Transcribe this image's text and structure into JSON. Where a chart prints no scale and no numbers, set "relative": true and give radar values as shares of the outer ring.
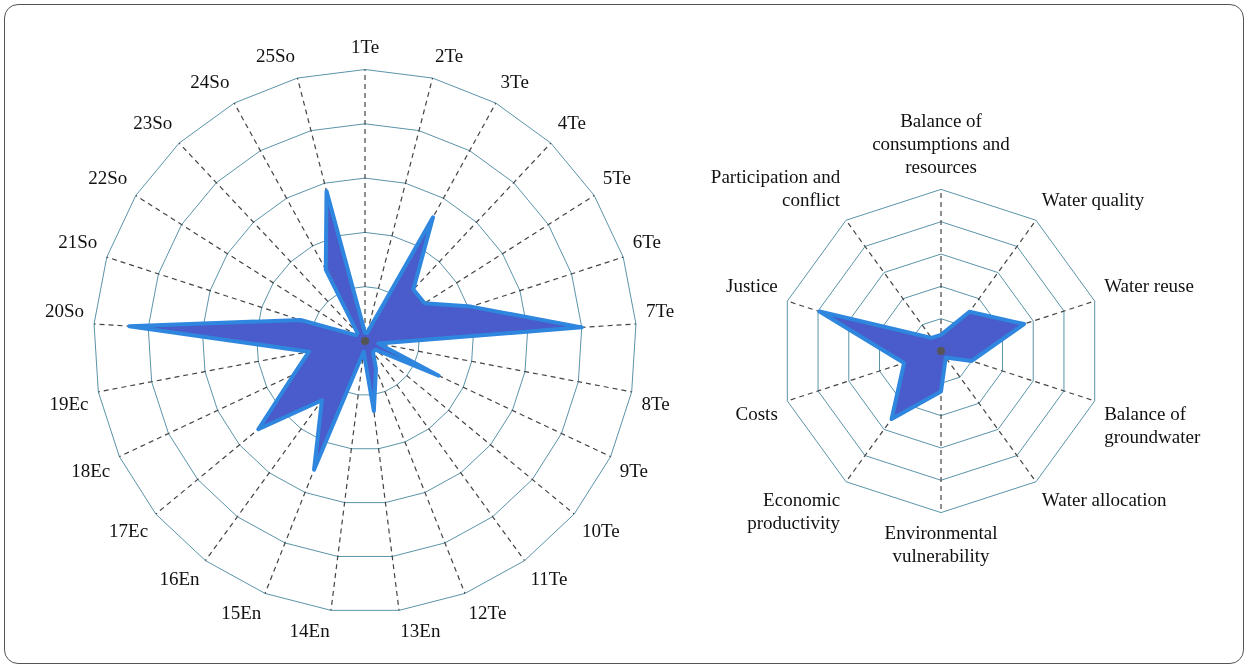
{
  "chart_data": [
    {
      "type": "radar",
      "relative": true,
      "legend": false,
      "categories": [
        "1Te",
        "2Te",
        "3Te",
        "4Te",
        "5Te",
        "6Te",
        "7Te",
        "8Te",
        "9Te",
        "10Te",
        "11Te",
        "12Te",
        "13En",
        "14En",
        "15En",
        "16En",
        "17Ec",
        "18Ec",
        "19Ec",
        "20So",
        "21So",
        "22So",
        "23So",
        "24So",
        "25So"
      ],
      "series": [
        {
          "color": "#4a5cc9",
          "values": [
            0.03,
            0.03,
            0.52,
            0.26,
            0.26,
            0.41,
            0.8,
            0.05,
            0.3,
            0.05,
            0.05,
            0.11,
            0.26,
            0.04,
            0.51,
            0.27,
            0.51,
            0.29,
            0.21,
            0.87,
            0.25,
            0.04,
            0.04,
            0.3,
            0.57
          ]
        }
      ]
    },
    {
      "type": "radar",
      "relative": true,
      "legend": false,
      "categories": [
        "Balance of consumptions and resources",
        "Water quality",
        "Water reuse",
        "Balance of groundwater",
        "Water allocation",
        "Environmental vulnerability",
        "Economic productivity",
        "Costs",
        "Justice",
        "Participation and conflict"
      ],
      "series": [
        {
          "color": "#4a5cc9",
          "values": [
            0.1,
            0.3,
            0.54,
            0.2,
            0.05,
            0.25,
            0.52,
            0.24,
            0.79,
            0.1
          ]
        }
      ]
    }
  ]
}
